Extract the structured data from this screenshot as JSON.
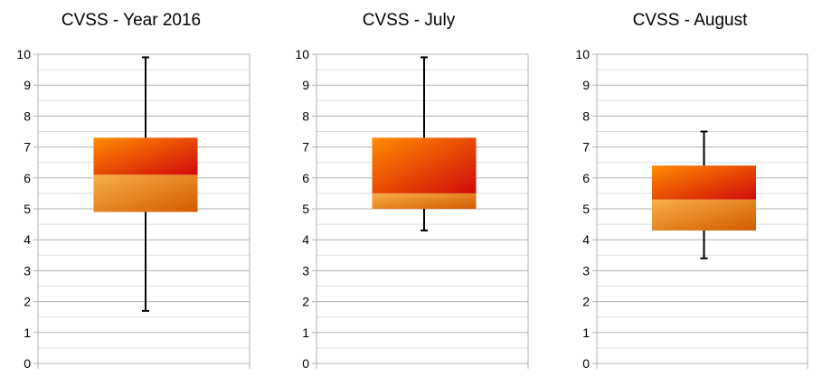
{
  "chart_data": [
    {
      "type": "boxplot",
      "title": "CVSS - Year 2016",
      "ylim": [
        0,
        10
      ],
      "yticks": [
        0,
        1,
        2,
        3,
        4,
        5,
        6,
        7,
        8,
        9,
        10
      ],
      "grid": true,
      "box": {
        "whisker_low": 1.7,
        "q1": 4.9,
        "median": 6.1,
        "q3": 7.3,
        "whisker_high": 9.9
      }
    },
    {
      "type": "boxplot",
      "title": "CVSS - July",
      "ylim": [
        0,
        10
      ],
      "yticks": [
        0,
        1,
        2,
        3,
        4,
        5,
        6,
        7,
        8,
        9,
        10
      ],
      "grid": true,
      "box": {
        "whisker_low": 4.3,
        "q1": 5.0,
        "median": 5.5,
        "q3": 7.3,
        "whisker_high": 9.9
      }
    },
    {
      "type": "boxplot",
      "title": "CVSS - August",
      "ylim": [
        0,
        10
      ],
      "yticks": [
        0,
        1,
        2,
        3,
        4,
        5,
        6,
        7,
        8,
        9,
        10
      ],
      "grid": true,
      "box": {
        "whisker_low": 3.4,
        "q1": 4.3,
        "median": 5.3,
        "q3": 6.4,
        "whisker_high": 7.5
      }
    }
  ],
  "colors": {
    "box_upper_start": "#ff8c00",
    "box_upper_end": "#d00a0a",
    "box_lower_start": "#f8b048",
    "box_lower_end": "#d25a00",
    "whisker": "#000000",
    "grid_major": "#b3b3b3",
    "grid_minor": "#dddddd"
  }
}
